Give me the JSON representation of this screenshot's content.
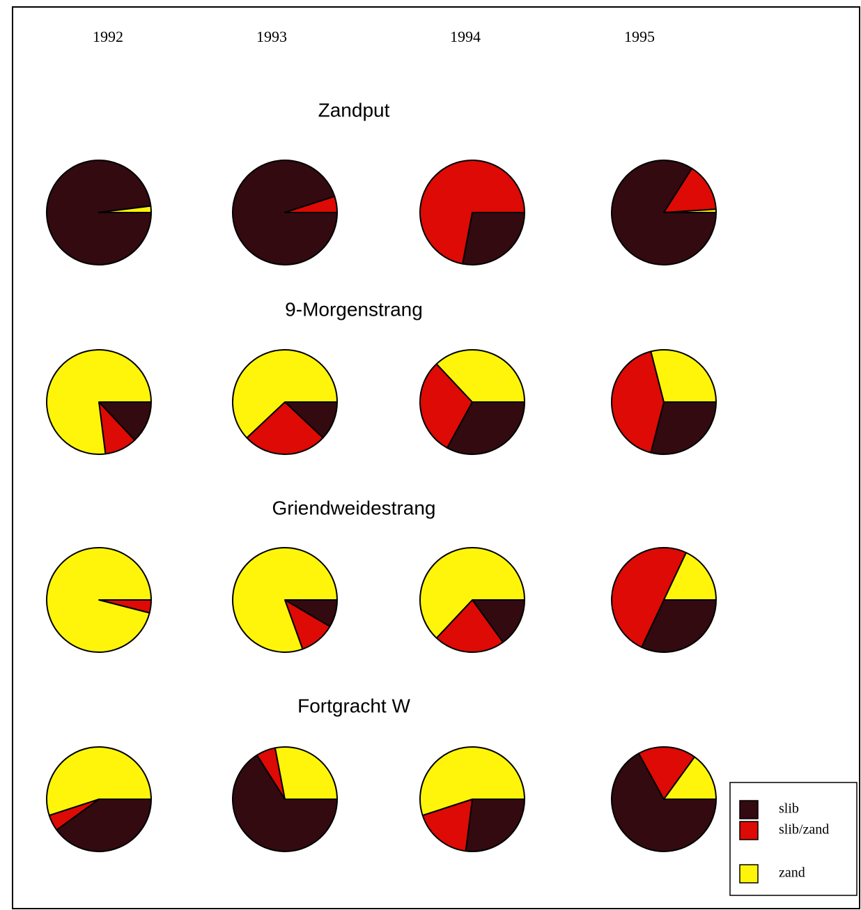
{
  "chart_data": {
    "type": "pie",
    "years": [
      "1992",
      "1993",
      "1994",
      "1995"
    ],
    "categories": [
      "slib",
      "slib/zand",
      "zand"
    ],
    "colors": [
      "#330a10",
      "#dd0a05",
      "#fff50a"
    ],
    "groups": [
      {
        "title": "Zandput",
        "pies": [
          {
            "values": [
              98,
              0,
              2
            ]
          },
          {
            "values": [
              95,
              5,
              0
            ]
          },
          {
            "values": [
              28,
              72,
              0
            ]
          },
          {
            "values": [
              84,
              15,
              1
            ]
          }
        ]
      },
      {
        "title": "9-Morgenstrang",
        "pies": [
          {
            "values": [
              13,
              10,
              77
            ]
          },
          {
            "values": [
              12,
              26,
              62
            ]
          },
          {
            "values": [
              33,
              30,
              37
            ]
          },
          {
            "values": [
              29,
              42,
              29
            ]
          }
        ]
      },
      {
        "title": "Griendweidestrang",
        "pies": [
          {
            "values": [
              0,
              4,
              96
            ]
          },
          {
            "values": [
              8.5,
              11,
              80.5
            ]
          },
          {
            "values": [
              15,
              22,
              63
            ]
          },
          {
            "values": [
              32,
              50,
              18
            ]
          }
        ]
      },
      {
        "title": "Fortgracht W",
        "pies": [
          {
            "values": [
              40,
              5,
              55
            ]
          },
          {
            "values": [
              66,
              6,
              28
            ]
          },
          {
            "values": [
              27,
              18,
              55
            ]
          },
          {
            "values": [
              67,
              18,
              15
            ]
          }
        ]
      }
    ]
  }
}
